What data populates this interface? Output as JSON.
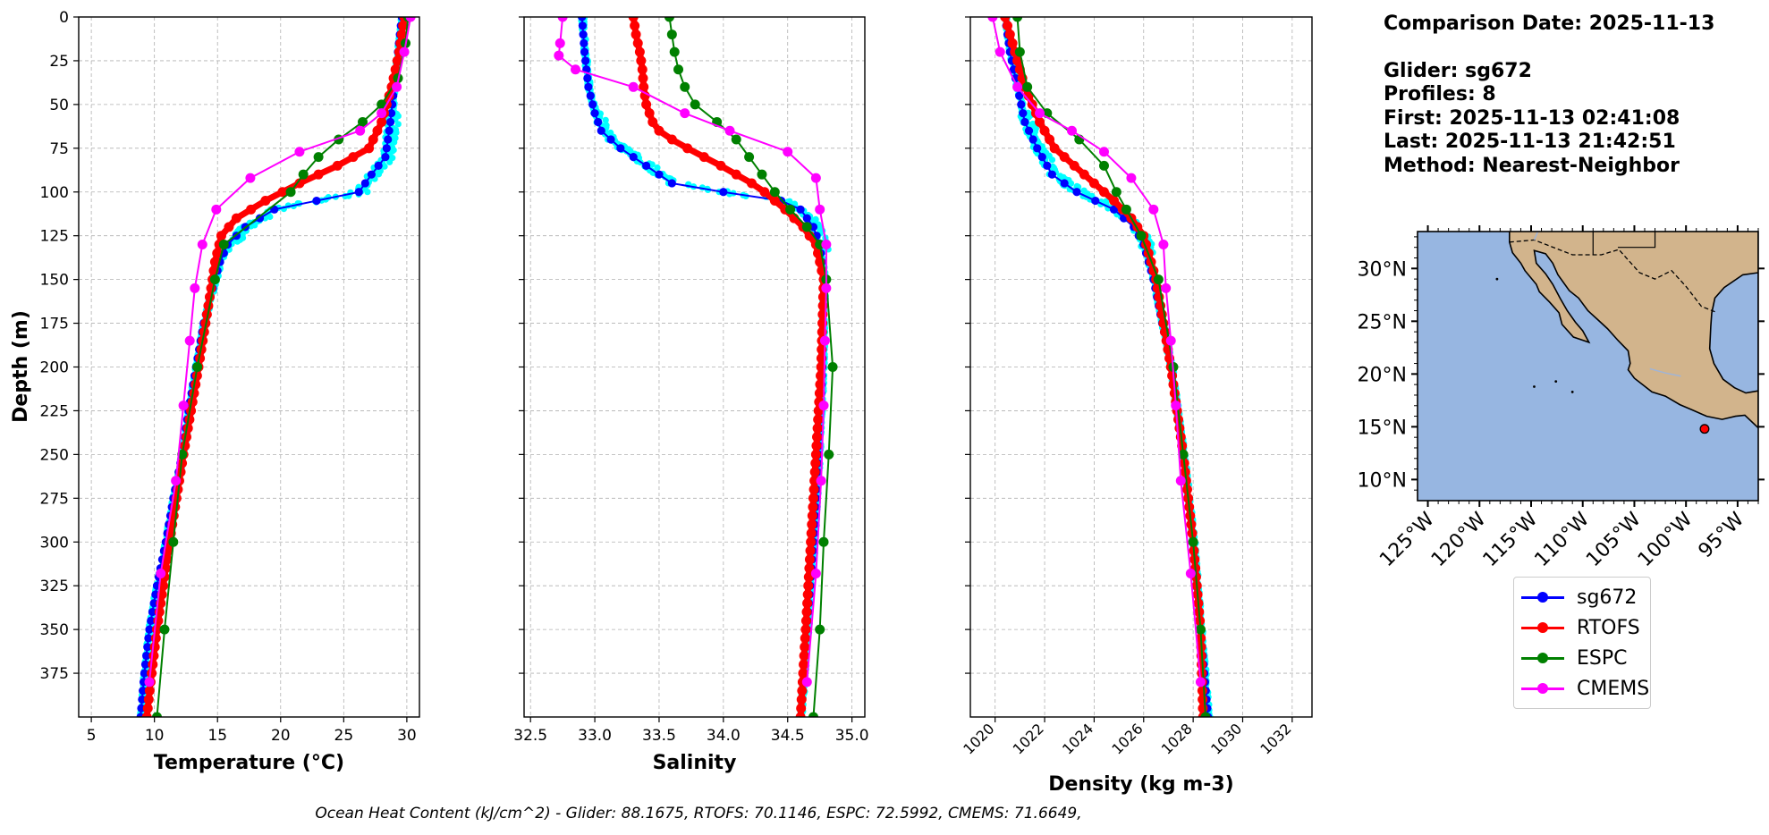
{
  "info": {
    "date_line": "Comparison Date: 2025-11-13",
    "glider_line": "Glider: sg672",
    "profiles_line": "Profiles: 8",
    "first_line": "First: 2025-11-13 02:41:08",
    "last_line": "Last: 2025-11-13 21:42:51",
    "method_line": "Method: Nearest-Neighbor"
  },
  "footer": "Ocean Heat Content (kJ/cm^2) - Glider: 88.1675,  RTOFS: 70.1146,  ESPC: 72.5992,  CMEMS: 71.6649,",
  "colors": {
    "sg672": "#0000ff",
    "RTOFS": "#ff0000",
    "ESPC": "#008000",
    "CMEMS": "#ff00ff",
    "glider_raw": "#00ffff",
    "ocean": "#97b6e1",
    "land": "#d2b48c",
    "grid": "#b0b0b0"
  },
  "legend": [
    {
      "name": "sg672",
      "color": "#0000ff"
    },
    {
      "name": "RTOFS",
      "color": "#ff0000"
    },
    {
      "name": "ESPC",
      "color": "#008000"
    },
    {
      "name": "CMEMS",
      "color": "#ff00ff"
    }
  ],
  "chart_data": [
    {
      "type": "line",
      "xlabel": "Temperature (°C)",
      "ylabel": "Depth (m)",
      "xlim": [
        4,
        31
      ],
      "ylim": [
        400,
        0
      ],
      "xticks": [
        5,
        10,
        15,
        20,
        25,
        30
      ],
      "yticks": [
        0,
        25,
        50,
        75,
        100,
        125,
        150,
        175,
        200,
        225,
        250,
        275,
        300,
        325,
        350,
        375
      ],
      "grid": true,
      "series": [
        {
          "name": "sg672",
          "depth": [
            0,
            20,
            40,
            60,
            80,
            90,
            100,
            110,
            120,
            130,
            140,
            150,
            175,
            200,
            225,
            250,
            275,
            300,
            325,
            350,
            375,
            400
          ],
          "values": [
            29.6,
            29.3,
            29.0,
            28.7,
            28.3,
            27.2,
            26.2,
            19.5,
            17.2,
            15.8,
            15.2,
            14.8,
            13.9,
            13.3,
            12.7,
            12.2,
            11.5,
            10.9,
            10.2,
            9.6,
            9.2,
            8.9
          ]
        },
        {
          "name": "RTOFS",
          "depth": [
            0,
            20,
            40,
            60,
            75,
            85,
            95,
            105,
            115,
            125,
            140,
            150,
            200,
            250,
            300,
            350,
            380,
            400
          ],
          "values": [
            29.8,
            29.4,
            28.8,
            28.0,
            27.0,
            24.5,
            21.5,
            18.8,
            16.5,
            15.3,
            14.8,
            14.6,
            13.5,
            12.3,
            11.2,
            10.2,
            9.7,
            9.4
          ]
        },
        {
          "name": "ESPC",
          "depth": [
            0,
            15,
            35,
            50,
            60,
            70,
            80,
            90,
            100,
            130,
            150,
            200,
            250,
            300,
            350,
            400
          ],
          "values": [
            30.1,
            29.9,
            29.3,
            28.0,
            26.5,
            24.6,
            23.0,
            21.8,
            20.8,
            15.5,
            14.8,
            13.4,
            12.2,
            11.5,
            10.8,
            10.2
          ]
        },
        {
          "name": "CMEMS",
          "depth": [
            0,
            20,
            40,
            55,
            65,
            77,
            92,
            110,
            130,
            155,
            185,
            222,
            265,
            318,
            380
          ],
          "values": [
            30.3,
            29.8,
            29.2,
            28.0,
            26.3,
            21.5,
            17.6,
            14.9,
            13.8,
            13.2,
            12.8,
            12.3,
            11.7,
            10.5,
            9.6
          ]
        }
      ]
    },
    {
      "type": "line",
      "xlabel": "Salinity",
      "xlim": [
        32.45,
        35.1
      ],
      "ylim": [
        400,
        0
      ],
      "xticks": [
        32.5,
        33.0,
        33.5,
        34.0,
        34.5,
        35.0
      ],
      "grid": true,
      "series": [
        {
          "name": "sg672",
          "depth": [
            0,
            20,
            40,
            55,
            65,
            75,
            85,
            95,
            100,
            105,
            110,
            120,
            130,
            150,
            200,
            250,
            300,
            350,
            400
          ],
          "values": [
            32.9,
            32.92,
            32.95,
            33.0,
            33.05,
            33.2,
            33.4,
            33.6,
            34.0,
            34.45,
            34.6,
            34.7,
            34.75,
            34.78,
            34.77,
            34.74,
            34.7,
            34.65,
            34.6
          ]
        },
        {
          "name": "RTOFS",
          "depth": [
            0,
            10,
            20,
            30,
            40,
            50,
            60,
            65,
            70,
            75,
            80,
            85,
            90,
            95,
            100,
            110,
            120,
            130,
            150,
            200,
            250,
            300,
            350,
            400
          ],
          "values": [
            33.3,
            33.32,
            33.35,
            33.37,
            33.38,
            33.4,
            33.45,
            33.5,
            33.6,
            33.72,
            33.85,
            33.98,
            34.1,
            34.22,
            34.32,
            34.48,
            34.62,
            34.72,
            34.78,
            34.76,
            34.72,
            34.68,
            34.64,
            34.6
          ]
        },
        {
          "name": "ESPC",
          "depth": [
            0,
            10,
            20,
            30,
            40,
            50,
            60,
            70,
            80,
            90,
            100,
            110,
            120,
            130,
            150,
            200,
            250,
            300,
            350,
            400
          ],
          "values": [
            33.58,
            33.6,
            33.62,
            33.65,
            33.7,
            33.78,
            33.95,
            34.1,
            34.2,
            34.3,
            34.4,
            34.52,
            34.65,
            34.75,
            34.8,
            34.85,
            34.82,
            34.78,
            34.75,
            34.7
          ]
        },
        {
          "name": "CMEMS",
          "depth": [
            0,
            15,
            22,
            30,
            40,
            55,
            65,
            77,
            92,
            110,
            130,
            155,
            185,
            222,
            265,
            318,
            380
          ],
          "values": [
            32.75,
            32.73,
            32.72,
            32.85,
            33.3,
            33.7,
            34.05,
            34.5,
            34.72,
            34.75,
            34.8,
            34.8,
            34.79,
            34.78,
            34.76,
            34.72,
            34.65
          ]
        }
      ]
    },
    {
      "type": "line",
      "xlabel": "Density (kg m-3)",
      "xlim": [
        1019,
        1032.8
      ],
      "ylim": [
        400,
        0
      ],
      "xticks": [
        1020,
        1022,
        1024,
        1026,
        1028,
        1030,
        1032
      ],
      "grid": true,
      "series": [
        {
          "name": "sg672",
          "depth": [
            0,
            20,
            40,
            60,
            75,
            90,
            100,
            110,
            120,
            130,
            150,
            200,
            250,
            300,
            350,
            400
          ],
          "values": [
            1020.4,
            1020.6,
            1020.9,
            1021.2,
            1021.7,
            1022.3,
            1023.3,
            1024.8,
            1025.6,
            1026.0,
            1026.4,
            1027.1,
            1027.6,
            1028.0,
            1028.3,
            1028.6
          ]
        },
        {
          "name": "RTOFS",
          "depth": [
            0,
            20,
            40,
            60,
            75,
            85,
            95,
            105,
            115,
            125,
            150,
            200,
            250,
            300,
            350,
            400
          ],
          "values": [
            1020.4,
            1020.8,
            1021.2,
            1021.8,
            1022.4,
            1023.2,
            1024.0,
            1024.8,
            1025.5,
            1026.0,
            1026.5,
            1027.1,
            1027.6,
            1028.0,
            1028.3,
            1028.4
          ]
        },
        {
          "name": "ESPC",
          "depth": [
            0,
            20,
            40,
            55,
            70,
            85,
            100,
            110,
            125,
            150,
            200,
            250,
            300,
            350,
            400
          ],
          "values": [
            1020.9,
            1021.0,
            1021.3,
            1022.1,
            1023.4,
            1024.4,
            1024.9,
            1025.3,
            1025.9,
            1026.6,
            1027.2,
            1027.6,
            1028.0,
            1028.3,
            1028.5
          ]
        },
        {
          "name": "CMEMS",
          "depth": [
            0,
            20,
            40,
            55,
            65,
            77,
            92,
            110,
            130,
            155,
            185,
            222,
            265,
            318,
            380
          ],
          "values": [
            1019.9,
            1020.2,
            1020.9,
            1021.8,
            1023.1,
            1024.4,
            1025.5,
            1026.4,
            1026.8,
            1026.9,
            1027.1,
            1027.3,
            1027.5,
            1027.9,
            1028.3
          ]
        }
      ]
    }
  ],
  "map": {
    "lat_ticks": [
      "30°N",
      "25°N",
      "20°N",
      "15°N",
      "10°N"
    ],
    "lon_ticks": [
      "125°W",
      "120°W",
      "115°W",
      "110°W",
      "105°W",
      "100°W",
      "95°W"
    ],
    "lat_range": [
      8,
      33.5
    ],
    "lon_range": [
      -126,
      -93
    ],
    "glider_position": {
      "lat": 14.8,
      "lon": -98.2
    }
  }
}
